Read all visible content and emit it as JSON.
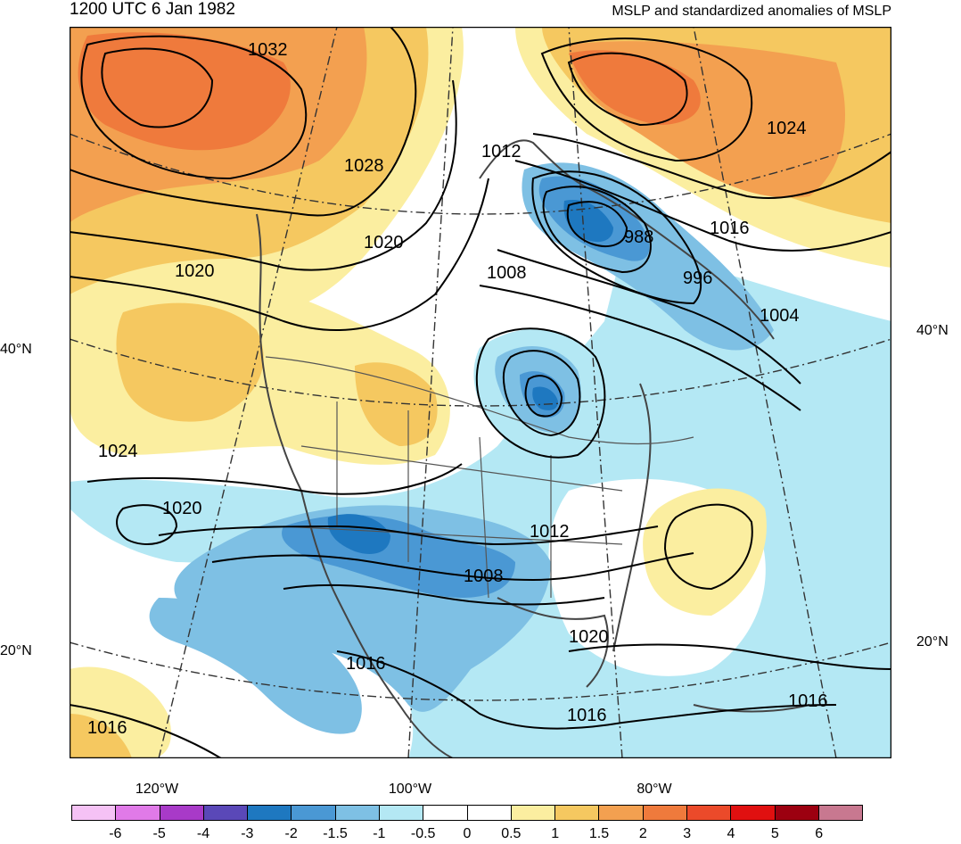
{
  "header": {
    "title_left": "1200 UTC 6 Jan 1982",
    "title_right": "MSLP and standardized anomalies of MSLP"
  },
  "axes": {
    "lat_labels_left": [
      "40°N",
      "20°N"
    ],
    "lat_labels_right": [
      "40°N",
      "20°N"
    ],
    "lon_labels": [
      "120°W",
      "100°W",
      "80°W"
    ]
  },
  "isobar_labels": [
    "1032",
    "1028",
    "1012",
    "1020",
    "1024",
    "1016",
    "988",
    "996",
    "1008",
    "1004",
    "1020",
    "1024",
    "1020",
    "1012",
    "1008",
    "1016",
    "1020",
    "1016",
    "1016",
    "1016"
  ],
  "colorbar": {
    "levels": [
      "-6",
      "-5",
      "-4",
      "-3",
      "-2",
      "-1.5",
      "-1",
      "-0.5",
      "0",
      "0.5",
      "1",
      "1.5",
      "2",
      "3",
      "4",
      "5",
      "6"
    ],
    "colors": [
      "#f5c2f5",
      "#e07ae8",
      "#a83ac8",
      "#5a48b8",
      "#1e78c0",
      "#4a98d4",
      "#7ec0e4",
      "#b4e8f4",
      "#ffffff",
      "#ffffff",
      "#fbeea0",
      "#f5c860",
      "#f3a050",
      "#ef7a3c",
      "#eb4a2a",
      "#e01010",
      "#9c0010",
      "#c87890"
    ]
  },
  "colors": {
    "land_outline": "#444444",
    "isobar": "#000000"
  }
}
